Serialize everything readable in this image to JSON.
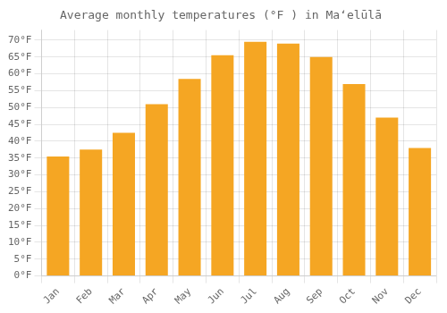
{
  "chart_data": {
    "type": "bar",
    "title": "Average monthly temperatures (°F ) in Maʻelūlā",
    "categories": [
      "Jan",
      "Feb",
      "Mar",
      "Apr",
      "May",
      "Jun",
      "Jul",
      "Aug",
      "Sep",
      "Oct",
      "Nov",
      "Dec"
    ],
    "values": [
      35.5,
      37.5,
      42.5,
      51.0,
      58.5,
      65.5,
      69.5,
      69.0,
      65.0,
      57.0,
      47.0,
      38.0
    ],
    "color": "#F5A623",
    "ylim": [
      0,
      73
    ],
    "yticks": [
      {
        "value": 0,
        "label": "0°F"
      },
      {
        "value": 5,
        "label": "5°F"
      },
      {
        "value": 10,
        "label": "10°F"
      },
      {
        "value": 15,
        "label": "15°F"
      },
      {
        "value": 20,
        "label": "20°F"
      },
      {
        "value": 25,
        "label": "25°F"
      },
      {
        "value": 30,
        "label": "30°F"
      },
      {
        "value": 35,
        "label": "35°F"
      },
      {
        "value": 40,
        "label": "40°F"
      },
      {
        "value": 45,
        "label": "45°F"
      },
      {
        "value": 50,
        "label": "50°F"
      },
      {
        "value": 55,
        "label": "55°F"
      },
      {
        "value": 60,
        "label": "60°F"
      },
      {
        "value": 65,
        "label": "65°F"
      },
      {
        "value": 70,
        "label": "70°F"
      }
    ],
    "grid": true
  }
}
